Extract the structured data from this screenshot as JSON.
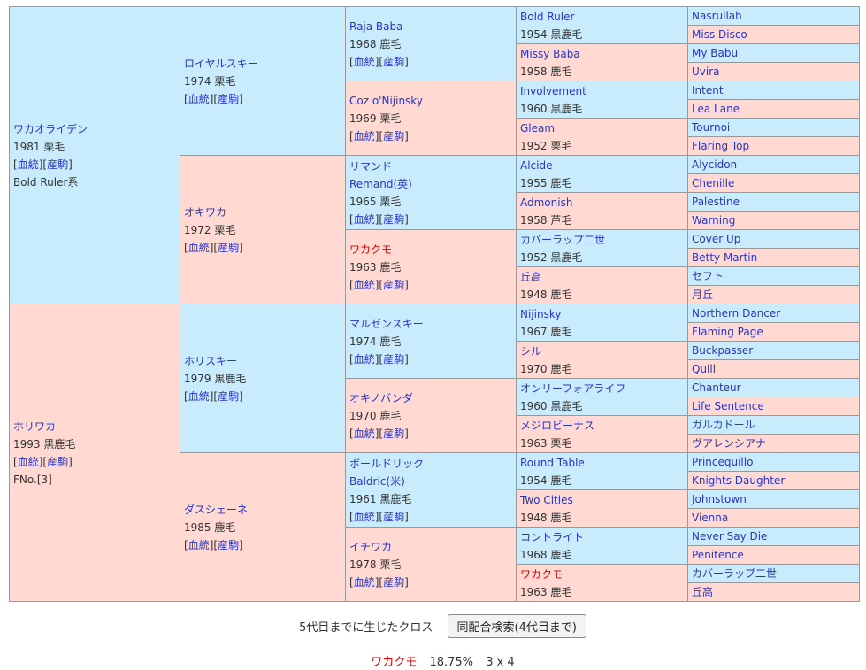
{
  "colors": {
    "male_bg": "#c8ecfc",
    "female_bg": "#ffd9d2",
    "border": "#999999",
    "link": "#2a35c2",
    "text": "#333333",
    "highlight": "#dd0000"
  },
  "labels": {
    "lb": "[",
    "rb": "]",
    "blood": "血統",
    "offspring": "産駒"
  },
  "pedigree": {
    "gen1": [
      {
        "name": "ワカオライデン",
        "detail": "1981 栗毛",
        "links": true,
        "extra": "Bold Ruler系"
      },
      {
        "name": "ホリワカ",
        "detail": "1993 黒鹿毛",
        "links": true,
        "extra": "FNo.[3]"
      }
    ],
    "gen2": [
      {
        "name": "ロイヤルスキー",
        "detail": "1974 栗毛",
        "links": true
      },
      {
        "name": "オキワカ",
        "detail": "1972 栗毛",
        "links": true
      },
      {
        "name": "ホリスキー",
        "detail": "1979 黒鹿毛",
        "links": true
      },
      {
        "name": "ダスシェーネ",
        "detail": "1985 鹿毛",
        "links": true
      }
    ],
    "gen3": [
      {
        "name": "Raja Baba",
        "detail": "1968 鹿毛",
        "links": true
      },
      {
        "name": "Coz o'Nijinsky",
        "detail": "1969 栗毛",
        "links": true
      },
      {
        "name": "リマンド",
        "alt": "Remand(英)",
        "detail": "1965 栗毛",
        "links": true
      },
      {
        "name": "ワカクモ",
        "detail": "1963 鹿毛",
        "links": true,
        "red": true
      },
      {
        "name": "マルゼンスキー",
        "detail": "1974 鹿毛",
        "links": true
      },
      {
        "name": "オキノバンダ",
        "detail": "1970 鹿毛",
        "links": true
      },
      {
        "name": "ボールドリック",
        "alt": "Baldric(米)",
        "detail": "1961 黒鹿毛",
        "links": true
      },
      {
        "name": "イチワカ",
        "detail": "1978 栗毛",
        "links": true
      }
    ],
    "gen4": [
      {
        "name": "Bold Ruler",
        "detail": "1954 黒鹿毛"
      },
      {
        "name": "Missy Baba",
        "detail": "1958 鹿毛"
      },
      {
        "name": "Involvement",
        "detail": "1960 黒鹿毛"
      },
      {
        "name": "Gleam",
        "detail": "1952 栗毛"
      },
      {
        "name": "Alcide",
        "detail": "1955 鹿毛"
      },
      {
        "name": "Admonish",
        "detail": "1958 芦毛"
      },
      {
        "name": "カバーラップ二世",
        "detail": "1952 黒鹿毛"
      },
      {
        "name": "丘高",
        "detail": "1948 鹿毛"
      },
      {
        "name": "Nijinsky",
        "detail": "1967 鹿毛"
      },
      {
        "name": "シル",
        "detail": "1970 鹿毛"
      },
      {
        "name": "オンリーフォアライフ",
        "detail": "1960 黒鹿毛"
      },
      {
        "name": "メジロビーナス",
        "detail": "1963 栗毛"
      },
      {
        "name": "Round Table",
        "detail": "1954 鹿毛"
      },
      {
        "name": "Two Cities",
        "detail": "1948 鹿毛"
      },
      {
        "name": "コントライト",
        "detail": "1968 鹿毛"
      },
      {
        "name": "ワカクモ",
        "detail": "1963 鹿毛",
        "red": true
      }
    ],
    "gen5": [
      {
        "name": "Nasrullah"
      },
      {
        "name": "Miss Disco"
      },
      {
        "name": "My Babu"
      },
      {
        "name": "Uvira"
      },
      {
        "name": "Intent"
      },
      {
        "name": "Lea Lane"
      },
      {
        "name": "Tournoi"
      },
      {
        "name": "Flaring Top"
      },
      {
        "name": "Alycidon"
      },
      {
        "name": "Chenille"
      },
      {
        "name": "Palestine"
      },
      {
        "name": "Warning"
      },
      {
        "name": "Cover Up"
      },
      {
        "name": "Betty Martin"
      },
      {
        "name": "セフト"
      },
      {
        "name": "月丘"
      },
      {
        "name": "Northern Dancer"
      },
      {
        "name": "Flaming Page"
      },
      {
        "name": "Buckpasser"
      },
      {
        "name": "Quill"
      },
      {
        "name": "Chanteur"
      },
      {
        "name": "Life Sentence"
      },
      {
        "name": "ガルカドール"
      },
      {
        "name": "ヴアレンシアナ"
      },
      {
        "name": "Princequillo"
      },
      {
        "name": "Knights Daughter"
      },
      {
        "name": "Johnstown"
      },
      {
        "name": "Vienna"
      },
      {
        "name": "Never Say Die"
      },
      {
        "name": "Penitence"
      },
      {
        "name": "カバーラップ二世"
      },
      {
        "name": "丘高"
      }
    ]
  },
  "footer": {
    "cross_label": "5代目までに生じたクロス",
    "search_button": "同配合検索(4代目まで)",
    "cross_result": {
      "name": "ワカクモ",
      "percent": "18.75%",
      "pattern": "3 x 4"
    }
  }
}
